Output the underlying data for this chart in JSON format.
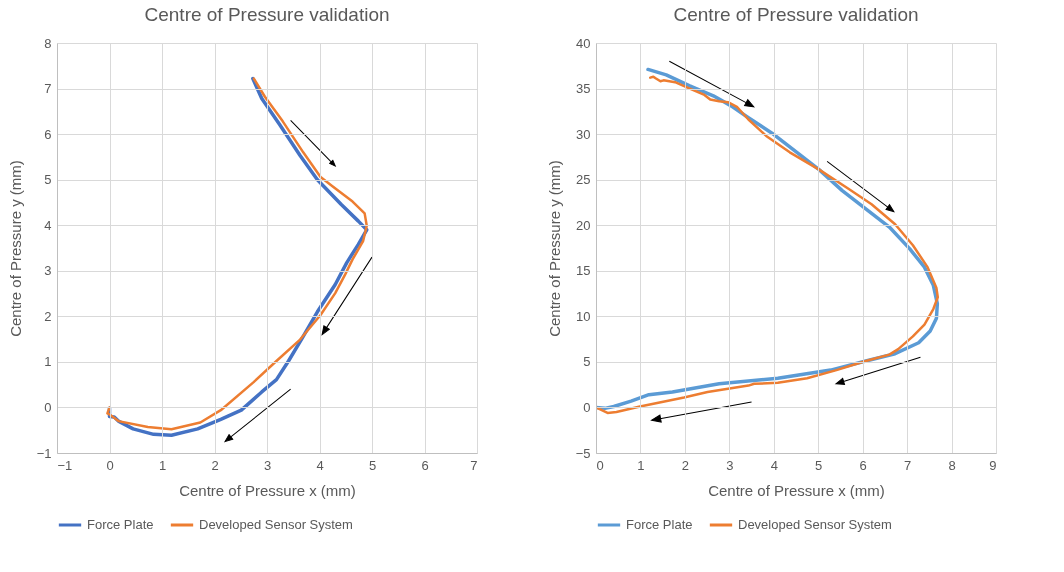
{
  "chart_data": [
    {
      "type": "line",
      "title": "Centre of Pressure validation",
      "xlabel": "Centre of Pressure x (mm)",
      "ylabel": "Centre of Pressure y (mm)",
      "xlim": [
        -1,
        7
      ],
      "ylim": [
        -1,
        8
      ],
      "xticks": [
        -1,
        0,
        1,
        2,
        3,
        4,
        5,
        6,
        7
      ],
      "yticks": [
        -1,
        0,
        1,
        2,
        3,
        4,
        5,
        6,
        7,
        8
      ],
      "grid": true,
      "legend": "bottom",
      "series": [
        {
          "name": "Force Plate",
          "color": "#4472c4",
          "x": [
            2.73,
            2.9,
            3.24,
            3.63,
            3.96,
            4.41,
            4.74,
            4.9,
            4.74,
            4.52,
            4.3,
            3.96,
            3.69,
            3.41,
            3.18,
            2.9,
            2.51,
            2.12,
            1.68,
            1.18,
            0.84,
            0.45,
            0.17,
            0.09,
            0.0,
            0.0
          ],
          "values": [
            7.22,
            6.78,
            6.21,
            5.53,
            5.0,
            4.46,
            4.09,
            3.9,
            3.58,
            3.18,
            2.7,
            2.1,
            1.56,
            1.02,
            0.61,
            0.34,
            -0.06,
            -0.26,
            -0.47,
            -0.61,
            -0.59,
            -0.47,
            -0.3,
            -0.21,
            -0.2,
            -0.02
          ]
        },
        {
          "name": "Developed Sensor System",
          "color": "#ed7d31",
          "x": [
            2.75,
            2.96,
            3.3,
            3.69,
            4.02,
            4.24,
            4.63,
            4.86,
            4.9,
            4.83,
            4.63,
            4.49,
            4.3,
            4.02,
            3.63,
            3.18,
            2.74,
            2.12,
            1.73,
            1.18,
            0.73,
            0.17,
            0.01,
            -0.04,
            0.0
          ],
          "values": [
            7.22,
            6.82,
            6.28,
            5.6,
            5.06,
            4.86,
            4.52,
            4.26,
            3.99,
            3.65,
            3.25,
            2.92,
            2.51,
            2.03,
            1.49,
            1.02,
            0.55,
            -0.06,
            -0.33,
            -0.48,
            -0.43,
            -0.3,
            -0.16,
            -0.13,
            0.0
          ]
        }
      ]
    },
    {
      "type": "line",
      "title": "Centre of Pressure validation",
      "xlabel": "Centre of Pressure x (mm)",
      "ylabel": "Centre of Pressure y (mm)",
      "xlim": [
        0,
        9
      ],
      "ylim": [
        -5,
        40
      ],
      "xticks": [
        0,
        1,
        2,
        3,
        4,
        5,
        6,
        7,
        8,
        9
      ],
      "yticks": [
        -5,
        0,
        5,
        10,
        15,
        20,
        25,
        30,
        35,
        40
      ],
      "grid": true,
      "legend": "bottom",
      "series": [
        {
          "name": "Force Plate",
          "color": "#5b9bd5",
          "x": [
            1.17,
            1.58,
            2.11,
            2.64,
            3.04,
            3.43,
            3.96,
            4.49,
            5.02,
            5.54,
            6.07,
            6.6,
            7.06,
            7.39,
            7.59,
            7.68,
            7.66,
            7.52,
            7.26,
            6.73,
            6.07,
            5.28,
            4.09,
            2.77,
            1.72,
            1.19,
            0.79,
            0.4,
            0.2,
            0.0
          ],
          "values": [
            37.1,
            36.5,
            35.3,
            34.2,
            33.1,
            31.8,
            30.1,
            28.1,
            26.1,
            23.8,
            21.8,
            19.8,
            17.4,
            15.4,
            13.4,
            11.4,
            9.8,
            8.4,
            7.1,
            5.9,
            5.1,
            4.1,
            3.2,
            2.6,
            1.7,
            1.4,
            0.7,
            0.1,
            -0.1,
            0.0
          ]
        },
        {
          "name": "Developed Sensor System",
          "color": "#ed7d31",
          "x": [
            1.22,
            1.29,
            1.35,
            1.45,
            1.52,
            1.78,
            2.11,
            2.44,
            2.57,
            2.77,
            2.97,
            3.17,
            3.43,
            3.83,
            4.36,
            5.02,
            5.68,
            6.2,
            6.73,
            7.13,
            7.46,
            7.66,
            7.69,
            7.59,
            7.39,
            7.13,
            6.8,
            6.6,
            6.07,
            5.41,
            4.75,
            4.09,
            3.56,
            3.43,
            3.04,
            2.51,
            1.98,
            0.99,
            0.46,
            0.26,
            0.0
          ],
          "values": [
            36.2,
            36.3,
            36.1,
            35.8,
            35.9,
            35.7,
            35.0,
            34.3,
            33.8,
            33.6,
            33.5,
            33.0,
            31.6,
            29.8,
            28.0,
            26.1,
            24.0,
            22.3,
            20.1,
            17.8,
            15.4,
            13.1,
            12.1,
            10.8,
            9.1,
            7.8,
            6.4,
            5.8,
            5.1,
            4.1,
            3.2,
            2.7,
            2.6,
            2.4,
            2.1,
            1.7,
            1.1,
            0.1,
            -0.5,
            -0.6,
            0.0
          ]
        }
      ]
    }
  ]
}
